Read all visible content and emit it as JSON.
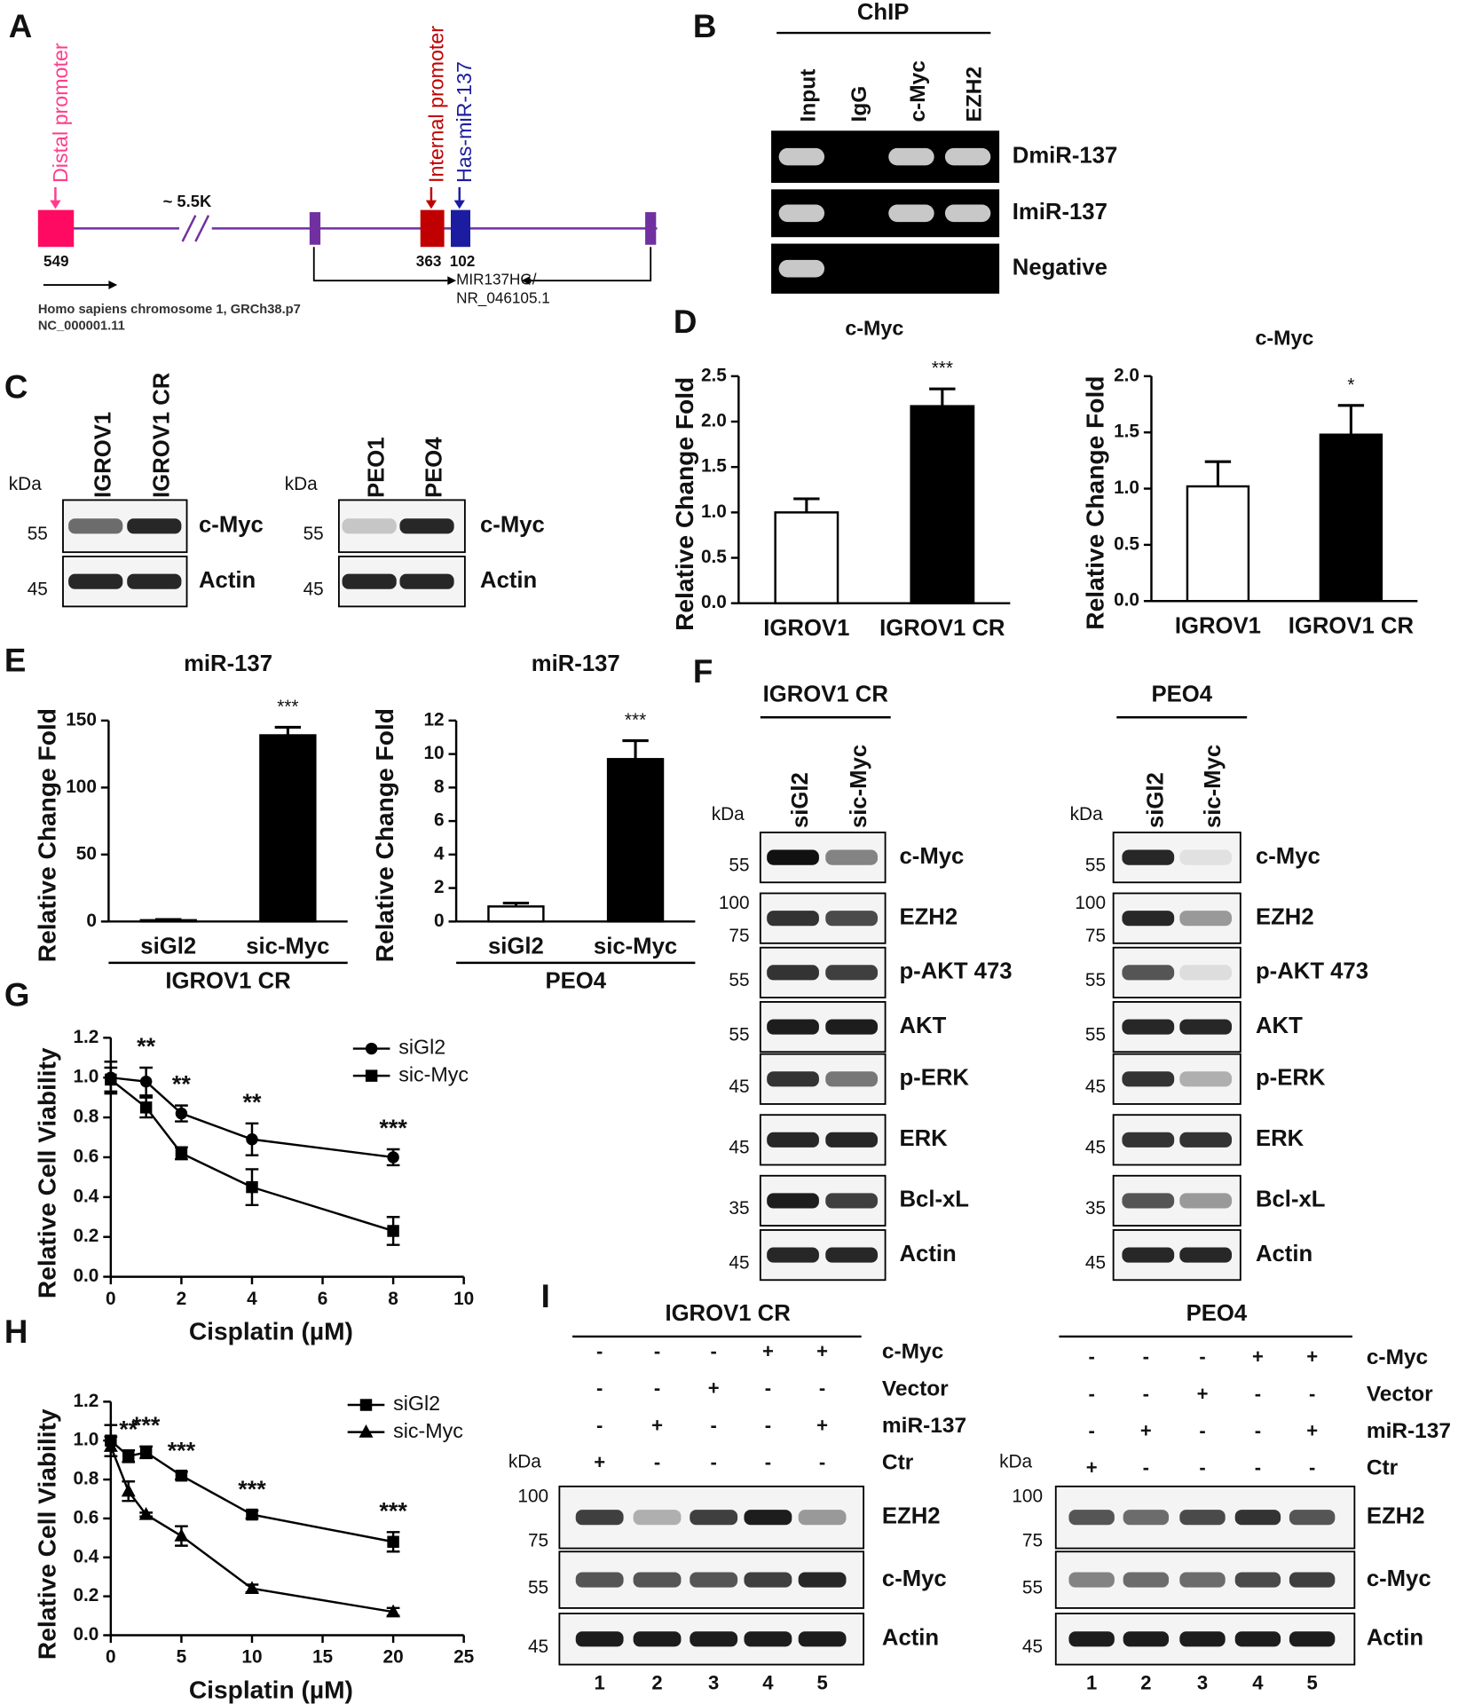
{
  "panel_labels": [
    "A",
    "B",
    "C",
    "D",
    "E",
    "F",
    "G",
    "H",
    "I"
  ],
  "diagram": {
    "distal_promoter": "Distal promoter",
    "gap": "~ 5.5K",
    "internal_promoter": "Internal promoter",
    "mirna": "Has-miR-137",
    "positions": [
      "549",
      "363",
      "102"
    ],
    "transcript": [
      "MIR137HG/",
      "NR_046105.1"
    ],
    "chromosome": [
      "Homo sapiens chromosome 1, GRCh38.p7",
      "NC_000001.11"
    ]
  },
  "chip": {
    "title": "ChIP",
    "lanes": [
      "Input",
      "IgG",
      "c-Myc",
      "EZH2"
    ],
    "rows": [
      "DmiR-137",
      "ImiR-137",
      "Negative"
    ]
  },
  "blots_c": [
    {
      "lanes": [
        "IGROV1",
        "IGROV1 CR"
      ],
      "kda": "kDa",
      "rows": [
        {
          "label": "c-Myc",
          "markers": [
            "55"
          ]
        },
        {
          "label": "Actin",
          "markers": [
            "45"
          ]
        }
      ]
    },
    {
      "lanes": [
        "PEO1",
        "PEO4"
      ],
      "kda": "kDa",
      "rows": [
        {
          "label": "c-Myc",
          "markers": [
            "55"
          ]
        },
        {
          "label": "Actin",
          "markers": [
            "45"
          ]
        }
      ]
    }
  ],
  "chart_data": [
    {
      "type": "bar",
      "title": "c-Myc",
      "ylabel": "Relative Change Fold",
      "categories": [
        "IGROV1",
        "IGROV1 CR"
      ],
      "values": [
        1.0,
        2.17
      ],
      "errors": [
        0.15,
        0.19
      ],
      "colors": [
        "#ffffff",
        "#000000"
      ],
      "annotations": [
        null,
        "***"
      ],
      "ylim": [
        0,
        2.5
      ],
      "yticks": [
        {
          "value": 0,
          "label": "0.0"
        },
        0.5,
        {
          "value": 1,
          "label": "1.0"
        },
        1.5,
        {
          "value": 2,
          "label": "2.0"
        },
        2.5
      ]
    },
    {
      "type": "bar",
      "title": "c-Myc",
      "ylabel": "Relative Change Fold",
      "categories": [
        "IGROV1",
        "IGROV1 CR"
      ],
      "values": [
        1.02,
        1.48
      ],
      "errors": [
        0.22,
        0.26
      ],
      "colors": [
        "#ffffff",
        "#000000"
      ],
      "annotations": [
        null,
        "*"
      ],
      "ylim": [
        0,
        2
      ],
      "yticks": [
        {
          "value": 0,
          "label": "0.0"
        },
        0.5,
        {
          "value": 1,
          "label": "1.0"
        },
        1.5,
        {
          "value": 2,
          "label": "2.0"
        }
      ]
    },
    {
      "type": "bar",
      "title": "miR-137",
      "ylabel": "Relative Change Fold",
      "categories": [
        "siGl2",
        "sic-Myc"
      ],
      "group_label": "IGROV1 CR",
      "values": [
        1,
        139
      ],
      "errors": [
        0.5,
        6
      ],
      "colors": [
        "#ffffff",
        "#000000"
      ],
      "annotations": [
        null,
        "***"
      ],
      "ylim": [
        0,
        150
      ],
      "yticks": [
        0,
        50,
        100,
        150
      ]
    },
    {
      "type": "bar",
      "title": "miR-137",
      "ylabel": "Relative Change Fold",
      "categories": [
        "siGl2",
        "sic-Myc"
      ],
      "group_label": "PEO4",
      "values": [
        0.9,
        9.7
      ],
      "errors": [
        0.2,
        1.1
      ],
      "colors": [
        "#ffffff",
        "#000000"
      ],
      "annotations": [
        null,
        "***"
      ],
      "ylim": [
        0,
        12
      ],
      "yticks": [
        0,
        2,
        4,
        6,
        8,
        10,
        12
      ]
    },
    {
      "type": "line",
      "xlabel": "Cisplatin (µM)",
      "ylabel": "Relative Cell Viability",
      "legend": "upper right",
      "x": [
        0,
        1,
        2,
        4,
        8
      ],
      "series": [
        {
          "name": "siGl2",
          "marker": "circle",
          "color": "#000000",
          "values": [
            1.0,
            0.98,
            0.82,
            0.69,
            0.6
          ],
          "errors": [
            0.08,
            0.07,
            0.04,
            0.08,
            0.04
          ]
        },
        {
          "name": "sic-Myc",
          "marker": "square",
          "color": "#000000",
          "values": [
            0.99,
            0.85,
            0.62,
            0.45,
            0.23
          ],
          "errors": [
            0.06,
            0.05,
            0.03,
            0.09,
            0.07
          ]
        }
      ],
      "annotations": [
        null,
        "**",
        "**",
        "**",
        "***"
      ],
      "xlim": [
        0,
        10
      ],
      "xticks": [
        0,
        2,
        4,
        6,
        8,
        10
      ],
      "ylim": [
        0,
        1.2
      ],
      "yticks": [
        {
          "value": 0,
          "label": "0.0"
        },
        0.2,
        0.4,
        0.6,
        0.8,
        {
          "value": 1,
          "label": "1.0"
        },
        1.2
      ]
    },
    {
      "type": "line",
      "xlabel": "Cisplatin (µM)",
      "ylabel": "Relative Cell Viability",
      "legend": "upper right",
      "x": [
        0,
        1.25,
        2.5,
        5,
        10,
        20
      ],
      "series": [
        {
          "name": "siGl2",
          "marker": "square",
          "color": "#000000",
          "values": [
            1.0,
            0.92,
            0.94,
            0.82,
            0.62,
            0.48
          ],
          "errors": [
            0.08,
            0.03,
            0.03,
            0.02,
            0.02,
            0.05
          ]
        },
        {
          "name": "sic-Myc",
          "marker": "triangle",
          "color": "#000000",
          "values": [
            0.97,
            0.74,
            0.62,
            0.51,
            0.24,
            0.12
          ],
          "errors": [
            0.05,
            0.05,
            0.01,
            0.05,
            0.02,
            0.02
          ]
        }
      ],
      "annotations": [
        null,
        "**",
        "***",
        "***",
        "***",
        "***"
      ],
      "xlim": [
        0,
        25
      ],
      "xticks": [
        0,
        5,
        10,
        15,
        20,
        25
      ],
      "ylim": [
        0,
        1.2
      ],
      "yticks": [
        {
          "value": 0,
          "label": "0.0"
        },
        0.2,
        0.4,
        0.6,
        0.8,
        {
          "value": 1,
          "label": "1.0"
        },
        1.2
      ]
    }
  ],
  "blots_f": [
    {
      "header": "IGROV1 CR",
      "lanes": [
        "siGl2",
        "sic-Myc"
      ],
      "kda": "kDa",
      "rows": [
        {
          "label": "c-Myc",
          "markers": [
            "55"
          ]
        },
        {
          "label": "EZH2",
          "markers": [
            "100",
            "75"
          ]
        },
        {
          "label": "p-AKT 473",
          "markers": [
            "55"
          ]
        },
        {
          "label": "AKT",
          "markers": [
            "55"
          ]
        },
        {
          "label": "p-ERK",
          "markers": [
            "45"
          ]
        },
        {
          "label": "ERK",
          "markers": [
            "45"
          ]
        },
        {
          "label": "Bcl-xL",
          "markers": [
            "35"
          ]
        },
        {
          "label": "Actin",
          "markers": [
            "45"
          ]
        }
      ]
    },
    {
      "header": "PEO4",
      "lanes": [
        "siGl2",
        "sic-Myc"
      ],
      "kda": "kDa",
      "rows": [
        {
          "label": "c-Myc",
          "markers": [
            "55"
          ]
        },
        {
          "label": "EZH2",
          "markers": [
            "100",
            "75"
          ]
        },
        {
          "label": "p-AKT 473",
          "markers": [
            "55"
          ]
        },
        {
          "label": "AKT",
          "markers": [
            "55"
          ]
        },
        {
          "label": "p-ERK",
          "markers": [
            "45"
          ]
        },
        {
          "label": "ERK",
          "markers": [
            "45"
          ]
        },
        {
          "label": "Bcl-xL",
          "markers": [
            "35"
          ]
        },
        {
          "label": "Actin",
          "markers": [
            "45"
          ]
        }
      ]
    }
  ],
  "blots_i": [
    {
      "header": "IGROV1 CR",
      "kda": "kDa",
      "conditions": [
        {
          "label": "c-Myc",
          "signs": [
            "-",
            "-",
            "-",
            "+",
            "+"
          ]
        },
        {
          "label": "Vector",
          "signs": [
            "-",
            "-",
            "+",
            "-",
            "-"
          ]
        },
        {
          "label": "miR-137",
          "signs": [
            "-",
            "+",
            "-",
            "-",
            "+"
          ]
        },
        {
          "label": "Ctr",
          "signs": [
            "+",
            "-",
            "-",
            "-",
            "-"
          ]
        }
      ],
      "rows": [
        {
          "label": "EZH2",
          "markers": [
            "100",
            "75"
          ]
        },
        {
          "label": "c-Myc",
          "markers": [
            "55"
          ]
        },
        {
          "label": "Actin",
          "markers": [
            "45"
          ]
        }
      ],
      "lanes": [
        "1",
        "2",
        "3",
        "4",
        "5"
      ]
    },
    {
      "header": "PEO4",
      "kda": "kDa",
      "conditions": [
        {
          "label": "c-Myc",
          "signs": [
            "-",
            "-",
            "-",
            "+",
            "+"
          ]
        },
        {
          "label": "Vector",
          "signs": [
            "-",
            "-",
            "+",
            "-",
            "-"
          ]
        },
        {
          "label": "miR-137",
          "signs": [
            "-",
            "+",
            "-",
            "-",
            "+"
          ]
        },
        {
          "label": "Ctr",
          "signs": [
            "+",
            "-",
            "-",
            "-",
            "-"
          ]
        }
      ],
      "rows": [
        {
          "label": "EZH2",
          "markers": [
            "100",
            "75"
          ]
        },
        {
          "label": "c-Myc",
          "markers": [
            "55"
          ]
        },
        {
          "label": "Actin",
          "markers": [
            "45"
          ]
        }
      ],
      "lanes": [
        "1",
        "2",
        "3",
        "4",
        "5"
      ]
    }
  ]
}
